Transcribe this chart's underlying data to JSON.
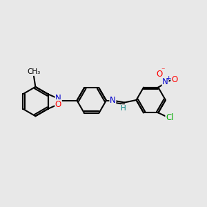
{
  "background_color": "#e8e8e8",
  "bond_color": "#000000",
  "bond_lw": 1.5,
  "atom_colors": {
    "N": "#0000cc",
    "O": "#ff0000",
    "Cl": "#00aa00",
    "H": "#008080"
  },
  "font_size": 8.5,
  "fig_width": 3.0,
  "fig_height": 3.0,
  "dpi": 100
}
